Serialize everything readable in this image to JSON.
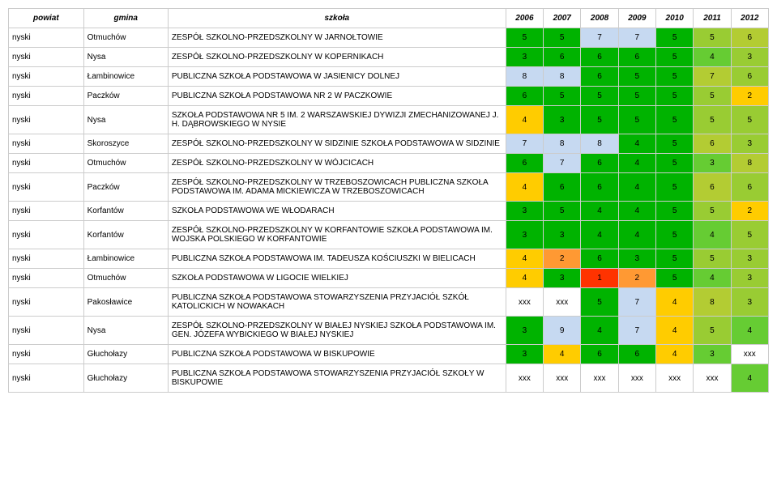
{
  "header": {
    "powiat": "powiat",
    "gmina": "gmina",
    "szkola": "szkoła",
    "years": [
      "2006",
      "2007",
      "2008",
      "2009",
      "2010",
      "2011",
      "2012"
    ]
  },
  "colors": {
    "none": "#ffffff",
    "green_deep": "#00b300",
    "green": "#66cc33",
    "green_lt": "#99cc33",
    "olive": "#b3cc33",
    "yellow": "#ffcc00",
    "gold": "#cc9933",
    "orange": "#ff9933",
    "orange_dk": "#ff6600",
    "blue_lt": "#c6d9f1",
    "red": "#ff3300"
  },
  "rows": [
    {
      "powiat": "nyski",
      "gmina": "Otmuchów",
      "szkola": "ZESPÓŁ SZKOLNO-PRZEDSZKOLNY W JARNOŁTOWIE",
      "cells": [
        {
          "v": "5",
          "c": "green_deep"
        },
        {
          "v": "5",
          "c": "green_deep"
        },
        {
          "v": "7",
          "c": "blue_lt"
        },
        {
          "v": "7",
          "c": "blue_lt"
        },
        {
          "v": "5",
          "c": "green_deep"
        },
        {
          "v": "5",
          "c": "green_lt"
        },
        {
          "v": "6",
          "c": "olive"
        }
      ]
    },
    {
      "powiat": "nyski",
      "gmina": "Nysa",
      "szkola": "ZESPÓŁ SZKOLNO-PRZEDSZKOLNY W KOPERNIKACH",
      "cells": [
        {
          "v": "3",
          "c": "green_deep"
        },
        {
          "v": "6",
          "c": "green_deep"
        },
        {
          "v": "6",
          "c": "green_deep"
        },
        {
          "v": "6",
          "c": "green_deep"
        },
        {
          "v": "5",
          "c": "green_deep"
        },
        {
          "v": "4",
          "c": "green"
        },
        {
          "v": "3",
          "c": "green_lt"
        }
      ]
    },
    {
      "powiat": "nyski",
      "gmina": "Łambinowice",
      "szkola": "PUBLICZNA SZKOŁA PODSTAWOWA W JASIENICY DOLNEJ",
      "cells": [
        {
          "v": "8",
          "c": "blue_lt"
        },
        {
          "v": "8",
          "c": "blue_lt"
        },
        {
          "v": "6",
          "c": "green_deep"
        },
        {
          "v": "5",
          "c": "green_deep"
        },
        {
          "v": "5",
          "c": "green_deep"
        },
        {
          "v": "7",
          "c": "olive"
        },
        {
          "v": "6",
          "c": "green_lt"
        }
      ]
    },
    {
      "powiat": "nyski",
      "gmina": "Paczków",
      "szkola": "PUBLICZNA SZKOŁA PODSTAWOWA NR 2 W PACZKOWIE",
      "cells": [
        {
          "v": "6",
          "c": "green_deep"
        },
        {
          "v": "5",
          "c": "green_deep"
        },
        {
          "v": "5",
          "c": "green_deep"
        },
        {
          "v": "5",
          "c": "green_deep"
        },
        {
          "v": "5",
          "c": "green_deep"
        },
        {
          "v": "5",
          "c": "green_lt"
        },
        {
          "v": "2",
          "c": "yellow"
        }
      ]
    },
    {
      "powiat": "nyski",
      "gmina": "Nysa",
      "szkola": "SZKOŁA PODSTAWOWA NR 5 IM. 2 WARSZAWSKIEJ DYWIZJI ZMECHANIZOWANEJ J. H. DĄBROWSKIEGO W NYSIE",
      "cells": [
        {
          "v": "4",
          "c": "yellow"
        },
        {
          "v": "3",
          "c": "green_deep"
        },
        {
          "v": "5",
          "c": "green_deep"
        },
        {
          "v": "5",
          "c": "green_deep"
        },
        {
          "v": "5",
          "c": "green_deep"
        },
        {
          "v": "5",
          "c": "green_lt"
        },
        {
          "v": "5",
          "c": "green_lt"
        }
      ]
    },
    {
      "powiat": "nyski",
      "gmina": "Skoroszyce",
      "szkola": "ZESPÓŁ SZKOLNO-PRZEDSZKOLNY W SIDZINIE SZKOŁA PODSTAWOWA W SIDZINIE",
      "cells": [
        {
          "v": "7",
          "c": "blue_lt"
        },
        {
          "v": "8",
          "c": "blue_lt"
        },
        {
          "v": "8",
          "c": "blue_lt"
        },
        {
          "v": "4",
          "c": "green_deep"
        },
        {
          "v": "5",
          "c": "green_deep"
        },
        {
          "v": "6",
          "c": "olive"
        },
        {
          "v": "3",
          "c": "green_lt"
        }
      ]
    },
    {
      "powiat": "nyski",
      "gmina": "Otmuchów",
      "szkola": "ZESPÓŁ SZKOLNO-PRZEDSZKOLNY W WÓJCICACH",
      "cells": [
        {
          "v": "6",
          "c": "green_deep"
        },
        {
          "v": "7",
          "c": "blue_lt"
        },
        {
          "v": "6",
          "c": "green_deep"
        },
        {
          "v": "4",
          "c": "green_deep"
        },
        {
          "v": "5",
          "c": "green_deep"
        },
        {
          "v": "3",
          "c": "green"
        },
        {
          "v": "8",
          "c": "olive"
        }
      ]
    },
    {
      "powiat": "nyski",
      "gmina": "Paczków",
      "szkola": "ZESPÓŁ SZKOLNO-PRZEDSZKOLNY W TRZEBOSZOWICACH PUBLICZNA SZKOŁA PODSTAWOWA IM. ADAMA MICKIEWICZA W TRZEBOSZOWICACH",
      "cells": [
        {
          "v": "4",
          "c": "yellow"
        },
        {
          "v": "6",
          "c": "green_deep"
        },
        {
          "v": "6",
          "c": "green_deep"
        },
        {
          "v": "4",
          "c": "green_deep"
        },
        {
          "v": "5",
          "c": "green_deep"
        },
        {
          "v": "6",
          "c": "olive"
        },
        {
          "v": "6",
          "c": "green_lt"
        }
      ]
    },
    {
      "powiat": "nyski",
      "gmina": "Korfantów",
      "szkola": "SZKOŁA PODSTAWOWA WE WŁODARACH",
      "cells": [
        {
          "v": "3",
          "c": "green_deep"
        },
        {
          "v": "5",
          "c": "green_deep"
        },
        {
          "v": "4",
          "c": "green_deep"
        },
        {
          "v": "4",
          "c": "green_deep"
        },
        {
          "v": "5",
          "c": "green_deep"
        },
        {
          "v": "5",
          "c": "green_lt"
        },
        {
          "v": "2",
          "c": "yellow"
        }
      ]
    },
    {
      "powiat": "nyski",
      "gmina": "Korfantów",
      "szkola": "ZESPÓŁ SZKOLNO-PRZEDSZKOLNY W KORFANTOWIE SZKOŁA PODSTAWOWA IM. WOJSKA POLSKIEGO W KORFANTOWIE",
      "cells": [
        {
          "v": "3",
          "c": "green_deep"
        },
        {
          "v": "3",
          "c": "green_deep"
        },
        {
          "v": "4",
          "c": "green_deep"
        },
        {
          "v": "4",
          "c": "green_deep"
        },
        {
          "v": "5",
          "c": "green_deep"
        },
        {
          "v": "4",
          "c": "green"
        },
        {
          "v": "5",
          "c": "green_lt"
        }
      ]
    },
    {
      "powiat": "nyski",
      "gmina": "Łambinowice",
      "szkola": "PUBLICZNA SZKOŁA PODSTAWOWA IM. TADEUSZA KOŚCIUSZKI W BIELICACH",
      "cells": [
        {
          "v": "4",
          "c": "yellow"
        },
        {
          "v": "2",
          "c": "orange"
        },
        {
          "v": "6",
          "c": "green_deep"
        },
        {
          "v": "3",
          "c": "green_deep"
        },
        {
          "v": "5",
          "c": "green_deep"
        },
        {
          "v": "5",
          "c": "green_lt"
        },
        {
          "v": "3",
          "c": "green_lt"
        }
      ]
    },
    {
      "powiat": "nyski",
      "gmina": "Otmuchów",
      "szkola": "SZKOŁA PODSTAWOWA W LIGOCIE WIELKIEJ",
      "cells": [
        {
          "v": "4",
          "c": "yellow"
        },
        {
          "v": "3",
          "c": "green_deep"
        },
        {
          "v": "1",
          "c": "red"
        },
        {
          "v": "2",
          "c": "orange"
        },
        {
          "v": "5",
          "c": "green_deep"
        },
        {
          "v": "4",
          "c": "green"
        },
        {
          "v": "3",
          "c": "green_lt"
        }
      ]
    },
    {
      "powiat": "nyski",
      "gmina": "Pakosławice",
      "szkola": "PUBLICZNA SZKOŁA PODSTAWOWA STOWARZYSZENIA PRZYJACIÓŁ SZKÓŁ KATOLICKICH W NOWAKACH",
      "cells": [
        {
          "v": "xxx",
          "c": "none"
        },
        {
          "v": "xxx",
          "c": "none"
        },
        {
          "v": "5",
          "c": "green_deep"
        },
        {
          "v": "7",
          "c": "blue_lt"
        },
        {
          "v": "4",
          "c": "yellow"
        },
        {
          "v": "8",
          "c": "olive"
        },
        {
          "v": "3",
          "c": "green_lt"
        }
      ]
    },
    {
      "powiat": "nyski",
      "gmina": "Nysa",
      "szkola": "ZESPÓŁ SZKOLNO-PRZEDSZKOLNY W BIAŁEJ NYSKIEJ SZKOŁA PODSTAWOWA IM. GEN. JÓZEFA WYBICKIEGO W BIAŁEJ NYSKIEJ",
      "cells": [
        {
          "v": "3",
          "c": "green_deep"
        },
        {
          "v": "9",
          "c": "blue_lt"
        },
        {
          "v": "4",
          "c": "green_deep"
        },
        {
          "v": "7",
          "c": "blue_lt"
        },
        {
          "v": "4",
          "c": "yellow"
        },
        {
          "v": "5",
          "c": "green_lt"
        },
        {
          "v": "4",
          "c": "green"
        }
      ]
    },
    {
      "powiat": "nyski",
      "gmina": "Głuchołazy",
      "szkola": "PUBLICZNA SZKOŁA PODSTAWOWA W BISKUPOWIE",
      "cells": [
        {
          "v": "3",
          "c": "green_deep"
        },
        {
          "v": "4",
          "c": "yellow"
        },
        {
          "v": "6",
          "c": "green_deep"
        },
        {
          "v": "6",
          "c": "green_deep"
        },
        {
          "v": "4",
          "c": "yellow"
        },
        {
          "v": "3",
          "c": "green"
        },
        {
          "v": "xxx",
          "c": "none"
        }
      ]
    },
    {
      "powiat": "nyski",
      "gmina": "Głuchołazy",
      "szkola": "PUBLICZNA SZKOŁA PODSTAWOWA STOWARZYSZENIA PRZYJACIÓŁ SZKOŁY W BISKUPOWIE",
      "cells": [
        {
          "v": "xxx",
          "c": "none"
        },
        {
          "v": "xxx",
          "c": "none"
        },
        {
          "v": "xxx",
          "c": "none"
        },
        {
          "v": "xxx",
          "c": "none"
        },
        {
          "v": "xxx",
          "c": "none"
        },
        {
          "v": "xxx",
          "c": "none"
        },
        {
          "v": "4",
          "c": "green"
        }
      ]
    }
  ]
}
